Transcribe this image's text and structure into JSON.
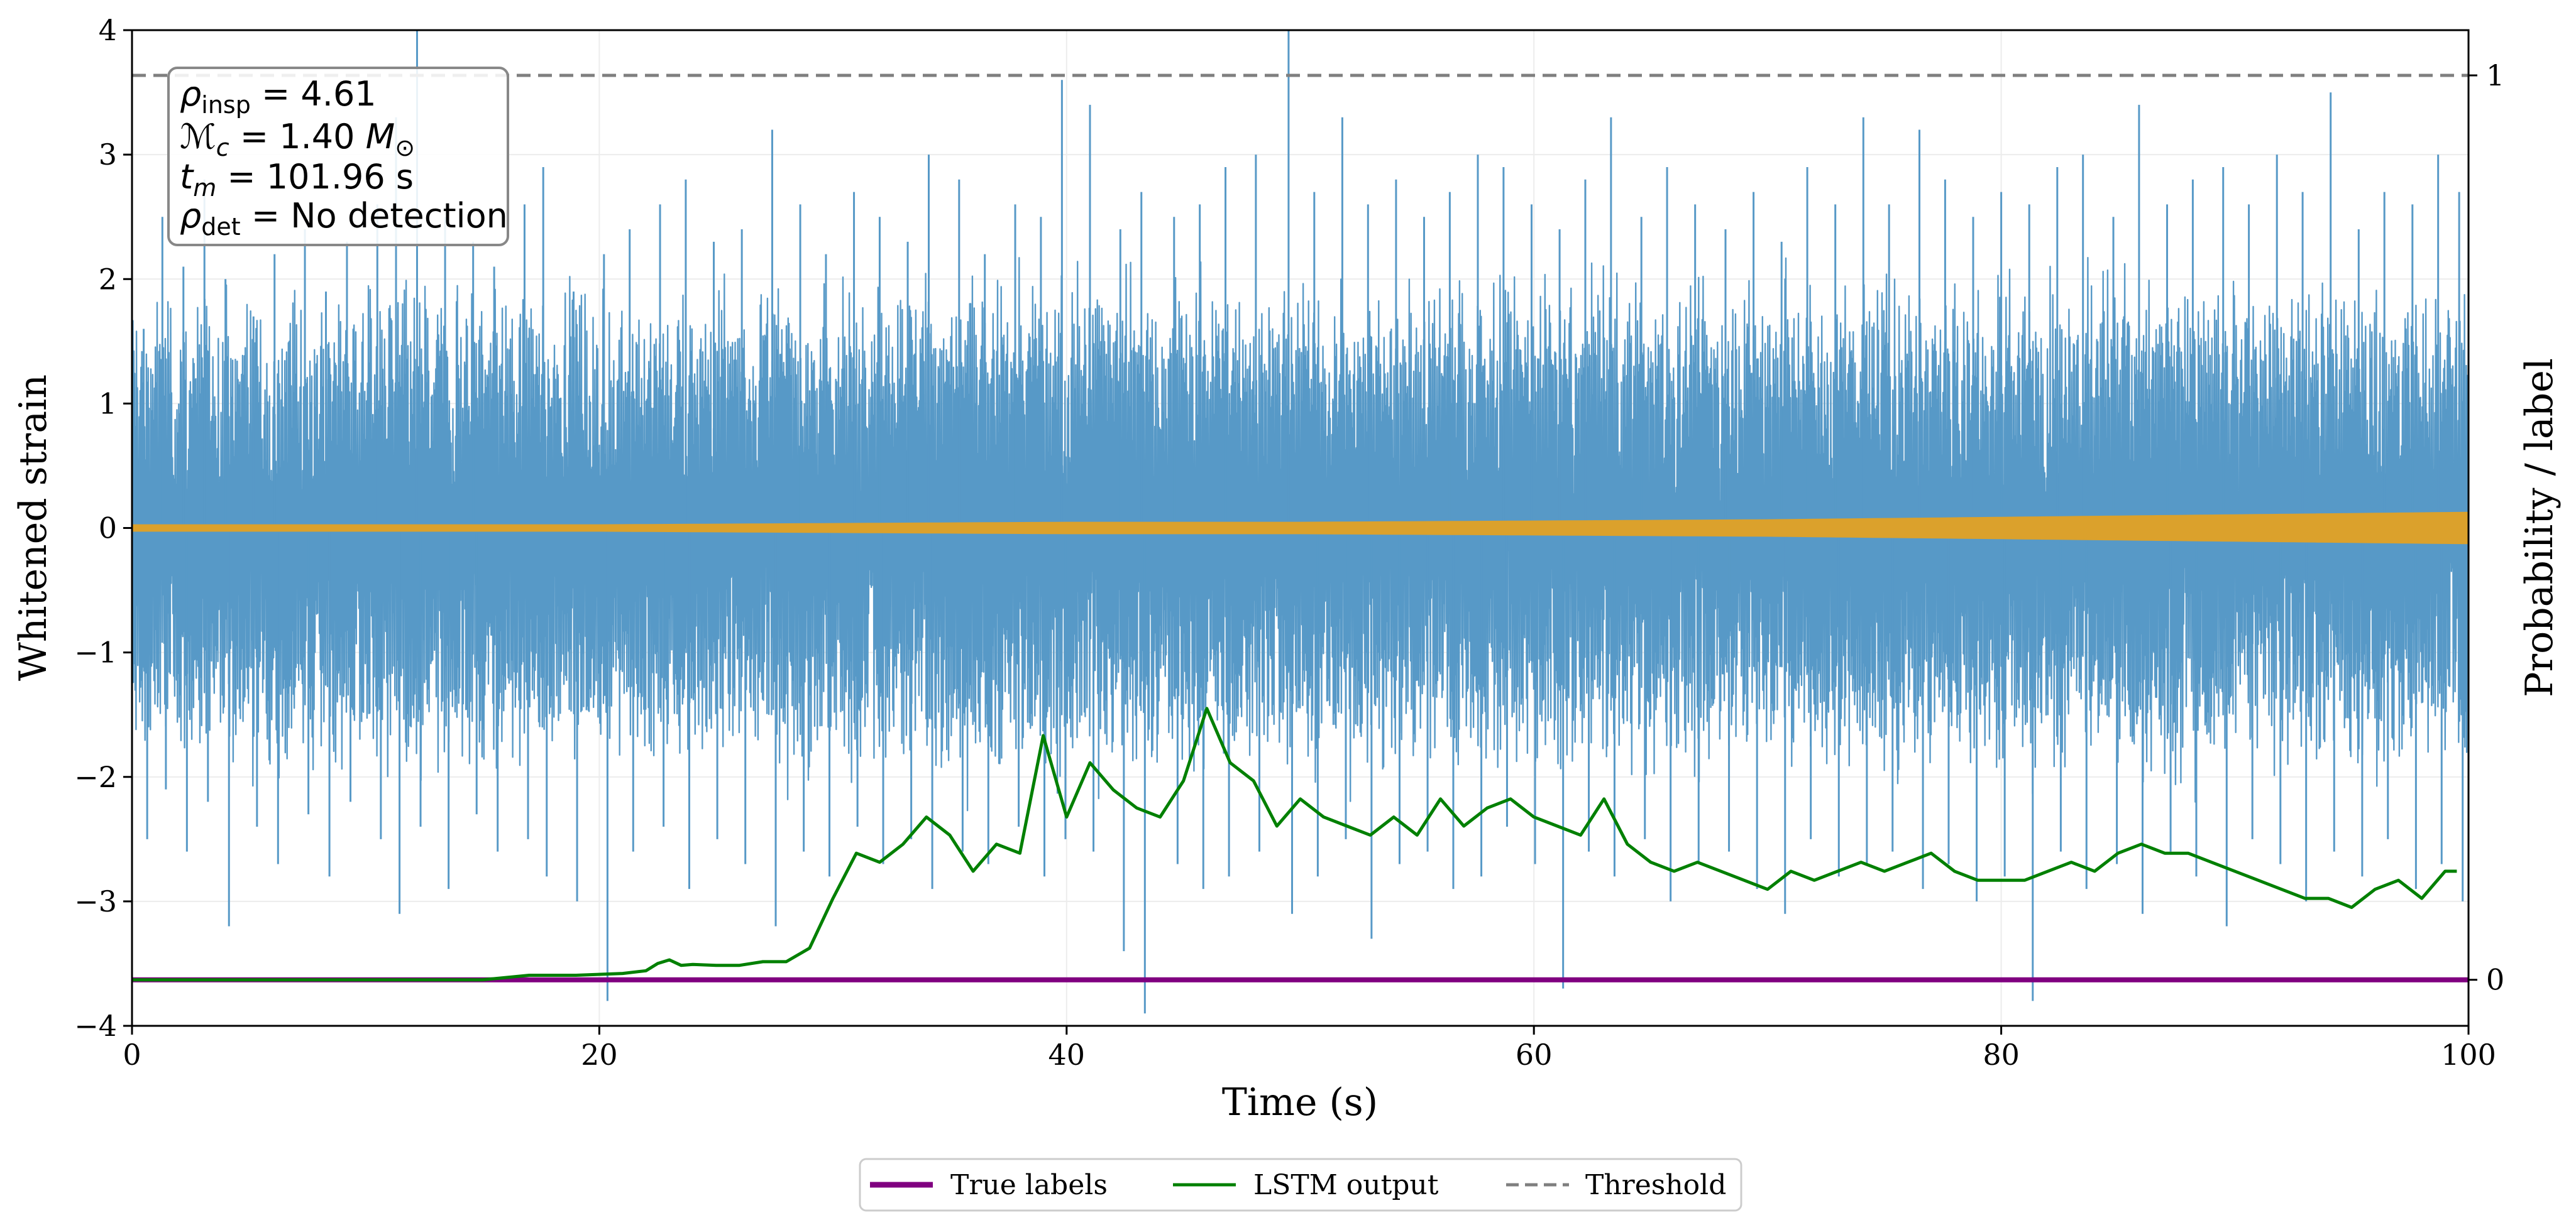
{
  "chart_data": {
    "type": "line",
    "xlabel": "Time (s)",
    "ylabel": "Whitened strain",
    "ylabel_right": "Probability / label",
    "xlim": [
      0,
      100
    ],
    "ylim": [
      -4,
      4
    ],
    "ylim_right": [
      -0.0509,
      1.05
    ],
    "xticks": [
      0,
      20,
      40,
      60,
      80,
      100
    ],
    "xtick_labels": [
      "0",
      "20",
      "40",
      "60",
      "80",
      "100"
    ],
    "yticks": [
      -4,
      -3,
      -2,
      -1,
      0,
      1,
      2,
      3,
      4
    ],
    "ytick_labels": [
      "−4",
      "−3",
      "−2",
      "−1",
      "0",
      "1",
      "2",
      "3",
      "4"
    ],
    "yticks_right": [
      0,
      1
    ],
    "ytick_labels_right": [
      "0",
      "1"
    ],
    "grid": true,
    "annotation": {
      "line1_sym": "ρ",
      "line1_sub": "insp",
      "line1_val": " = 4.61",
      "line2_sym": "ℳ",
      "line2_sub": "c",
      "line2_val": " = 1.40 ",
      "line2_unit": "M",
      "line2_unit_sub": "⊙",
      "line3_sym": "t",
      "line3_sub": "m",
      "line3_val": " = 101.96 s",
      "line4_sym": "ρ",
      "line4_sub": "det",
      "line4_val": " = No detection"
    },
    "strain_noise": {
      "name": "Whitened strain (noise)",
      "color": "#5799c7",
      "envelope_x": [
        0,
        10,
        20,
        30,
        40,
        50,
        60,
        70,
        80,
        90,
        100
      ],
      "envelope_upper": [
        1.2,
        1.3,
        1.25,
        1.3,
        1.35,
        1.3,
        1.3,
        1.3,
        1.35,
        1.3,
        1.3
      ],
      "envelope_lower": [
        -1.2,
        -1.3,
        -1.25,
        -1.3,
        -1.35,
        -1.3,
        -1.3,
        -1.3,
        -1.35,
        -1.3,
        -1.3
      ],
      "spikes_x": [
        0.5,
        1.3,
        2.2,
        3.1,
        4.0,
        5.2,
        6.1,
        7.4,
        8.3,
        9.2,
        10.5,
        11.3,
        12.2,
        13.4,
        14.6,
        15.5,
        16.8,
        17.6,
        18.9,
        20.2,
        21.3,
        22.6,
        23.7,
        24.9,
        26.1,
        27.4,
        28.6,
        29.7,
        30.9,
        32.0,
        33.2,
        34.1,
        35.4,
        36.5,
        37.8,
        38.9,
        39.8,
        41.0,
        42.3,
        43.2,
        44.6,
        45.7,
        46.8,
        48.1,
        49.5,
        50.6,
        51.8,
        52.9,
        54.1,
        55.3,
        56.4,
        57.6,
        58.7,
        59.9,
        61.1,
        62.2,
        63.3,
        64.6,
        65.7,
        66.9,
        68.2,
        69.4,
        70.6,
        71.7,
        72.9,
        74.1,
        75.2,
        76.5,
        77.6,
        78.8,
        80.0,
        81.2,
        82.4,
        83.5,
        84.8,
        85.9,
        87.1,
        88.2,
        89.5,
        90.6,
        91.8,
        92.9,
        94.1,
        95.3,
        96.4,
        97.6,
        98.7,
        99.6
      ],
      "spikes_high": [
        1.6,
        2.5,
        2.1,
        2.8,
        2.0,
        1.7,
        2.2,
        2.4,
        1.9,
        2.3,
        2.6,
        3.3,
        4.0,
        2.5,
        2.3,
        2.1,
        2.6,
        2.9,
        1.9,
        2.2,
        2.4,
        2.6,
        2.8,
        2.3,
        2.4,
        3.2,
        2.6,
        2.2,
        2.7,
        2.5,
        2.3,
        3.0,
        2.8,
        2.2,
        2.6,
        2.5,
        3.6,
        3.4,
        2.4,
        2.7,
        2.5,
        2.6,
        2.9,
        3.0,
        4.0,
        2.7,
        3.3,
        2.6,
        2.8,
        2.5,
        2.7,
        3.0,
        2.9,
        2.6,
        2.4,
        2.8,
        3.3,
        2.5,
        2.9,
        2.6,
        2.4,
        2.7,
        2.3,
        2.9,
        2.6,
        3.3,
        2.6,
        3.2,
        2.8,
        2.5,
        2.7,
        2.6,
        2.9,
        3.0,
        2.5,
        3.4,
        2.6,
        2.8,
        2.9,
        2.6,
        3.0,
        2.7,
        3.5,
        2.4,
        2.7,
        2.6,
        3.0,
        2.7
      ],
      "spikes_low": [
        -2.5,
        -2.1,
        -2.6,
        -2.2,
        -3.2,
        -2.4,
        -2.7,
        -2.3,
        -2.8,
        -2.2,
        -2.5,
        -3.1,
        -2.4,
        -2.9,
        -2.3,
        -2.6,
        -2.5,
        -2.8,
        -3.0,
        -3.8,
        -2.6,
        -2.4,
        -2.9,
        -2.5,
        -2.7,
        -3.2,
        -2.6,
        -2.8,
        -2.4,
        -2.7,
        -2.5,
        -2.9,
        -2.6,
        -2.7,
        -2.4,
        -2.8,
        -2.5,
        -2.6,
        -3.4,
        -3.9,
        -2.7,
        -2.9,
        -2.8,
        -2.6,
        -3.1,
        -2.8,
        -2.5,
        -3.3,
        -2.7,
        -2.6,
        -2.9,
        -2.8,
        -2.4,
        -2.7,
        -3.7,
        -2.6,
        -2.8,
        -2.5,
        -3.0,
        -2.7,
        -2.6,
        -2.9,
        -3.1,
        -2.5,
        -2.8,
        -2.7,
        -2.6,
        -2.9,
        -2.7,
        -3.0,
        -2.8,
        -3.8,
        -2.6,
        -2.9,
        -2.7,
        -3.1,
        -2.6,
        -2.8,
        -3.2,
        -2.5,
        -2.7,
        -3.0,
        -2.6,
        -2.8,
        -2.5,
        -2.9,
        -2.7,
        -3.0
      ]
    },
    "strain_signal": {
      "name": "Injected signal",
      "color": "#dba12c",
      "x": [
        0,
        10,
        20,
        30,
        40,
        50,
        60,
        70,
        80,
        90,
        100
      ],
      "amplitude": [
        0.03,
        0.03,
        0.03,
        0.04,
        0.05,
        0.05,
        0.06,
        0.07,
        0.09,
        0.11,
        0.13
      ]
    },
    "series": [
      {
        "name": "True labels",
        "color": "#800080",
        "axis": "right",
        "x": [
          0,
          100
        ],
        "values": [
          0,
          0
        ]
      },
      {
        "name": "LSTM output",
        "color": "#008000",
        "axis": "right",
        "x": [
          0,
          5,
          10,
          15,
          17,
          19,
          21,
          22,
          22.5,
          23,
          23.5,
          24,
          25,
          26,
          27,
          28,
          29,
          30,
          31,
          32,
          33,
          34,
          35,
          36,
          37,
          38,
          39,
          40,
          41,
          42,
          43,
          44,
          45,
          46,
          47,
          48,
          49,
          50,
          51,
          52,
          53,
          54,
          55,
          56,
          57,
          58,
          59,
          60,
          61,
          62,
          63,
          64,
          65,
          66,
          67,
          68,
          69,
          70,
          71,
          72,
          73,
          74,
          75,
          76,
          77,
          78,
          79,
          80,
          81,
          82,
          83,
          84,
          85,
          86,
          87,
          88,
          89,
          90,
          91,
          92,
          93,
          94,
          95,
          96,
          97,
          98,
          99,
          99.5
        ],
        "values": [
          0,
          0,
          0,
          0,
          0.005,
          0.005,
          0.007,
          0.01,
          0.018,
          0.022,
          0.016,
          0.017,
          0.016,
          0.016,
          0.02,
          0.02,
          0.035,
          0.09,
          0.14,
          0.13,
          0.15,
          0.18,
          0.16,
          0.12,
          0.15,
          0.14,
          0.27,
          0.18,
          0.24,
          0.21,
          0.19,
          0.18,
          0.22,
          0.3,
          0.24,
          0.22,
          0.17,
          0.2,
          0.18,
          0.17,
          0.16,
          0.18,
          0.16,
          0.2,
          0.17,
          0.19,
          0.2,
          0.18,
          0.17,
          0.16,
          0.2,
          0.15,
          0.13,
          0.12,
          0.13,
          0.12,
          0.11,
          0.1,
          0.12,
          0.11,
          0.12,
          0.13,
          0.12,
          0.13,
          0.14,
          0.12,
          0.11,
          0.11,
          0.11,
          0.12,
          0.13,
          0.12,
          0.14,
          0.15,
          0.14,
          0.14,
          0.13,
          0.12,
          0.11,
          0.1,
          0.09,
          0.09,
          0.08,
          0.1,
          0.11,
          0.09,
          0.12,
          0.12
        ]
      },
      {
        "name": "Threshold",
        "color": "#7f7f7f",
        "axis": "right",
        "dashed": true,
        "x": [
          0,
          100
        ],
        "values": [
          1,
          1
        ]
      }
    ],
    "legend": {
      "placement": "bottom-center",
      "entries": [
        "True labels",
        "LSTM output",
        "Threshold"
      ]
    }
  }
}
